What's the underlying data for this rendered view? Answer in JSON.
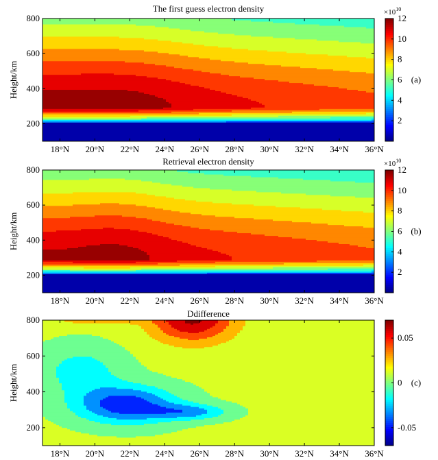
{
  "chart_data": [
    {
      "type": "heatmap",
      "title": "The first guess electron density",
      "panel_label": "(a)",
      "ylabel": "Height/km",
      "xlabel": "",
      "xlim": [
        17,
        36
      ],
      "ylim": [
        100,
        800
      ],
      "x_ticks": [
        "18°N",
        "20°N",
        "22°N",
        "24°N",
        "26°N",
        "28°N",
        "30°N",
        "32°N",
        "34°N",
        "36°N"
      ],
      "y_ticks": [
        "200",
        "400",
        "600",
        "800"
      ],
      "colorbar": {
        "ticks": [
          "2",
          "4",
          "6",
          "8",
          "10",
          "12"
        ],
        "multiplier_base": "×10",
        "multiplier_exp": "10",
        "range": [
          0,
          12
        ]
      },
      "fields": {
        "peak_height_km": 290,
        "peak_value": 12.5,
        "core_lat_range": [
          17,
          26.5
        ],
        "core_height_range": [
          270,
          345
        ],
        "bottomside_cutoff_km": 205
      }
    },
    {
      "type": "heatmap",
      "title": "Retrieval electron density",
      "panel_label": "(b)",
      "ylabel": "Height/km",
      "xlabel": "",
      "xlim": [
        17,
        36
      ],
      "ylim": [
        100,
        800
      ],
      "x_ticks": [
        "18°N",
        "20°N",
        "22°N",
        "24°N",
        "26°N",
        "28°N",
        "30°N",
        "32°N",
        "34°N",
        "36°N"
      ],
      "y_ticks": [
        "200",
        "400",
        "600",
        "800"
      ],
      "colorbar": {
        "ticks": [
          "2",
          "4",
          "6",
          "8",
          "10",
          "12"
        ],
        "multiplier_base": "×10",
        "multiplier_exp": "10",
        "range": [
          0,
          12
        ]
      },
      "fields": {
        "peak_height_km": 290,
        "peak_value": 12.2,
        "core_lat_range": [
          18.5,
          24.5
        ],
        "core_height_range": [
          275,
          310
        ],
        "bottomside_cutoff_km": 205
      }
    },
    {
      "type": "heatmap",
      "title": "Ddifference",
      "panel_label": "(c)",
      "ylabel": "Height/km",
      "xlabel": "",
      "xlim": [
        17,
        36
      ],
      "ylim": [
        100,
        800
      ],
      "x_ticks": [
        "18°N",
        "20°N",
        "22°N",
        "24°N",
        "26°N",
        "28°N",
        "30°N",
        "32°N",
        "34°N",
        "36°N"
      ],
      "y_ticks": [
        "200",
        "400",
        "600",
        "800"
      ],
      "colorbar": {
        "ticks": [
          "0.05",
          "0",
          "-0.05"
        ],
        "tick_values": [
          0.05,
          0,
          -0.05
        ],
        "range": [
          -0.07,
          0.07
        ]
      },
      "fields": {
        "positive_max_lat": 25.5,
        "positive_max_height_km": 780,
        "negative_min_lat": 22,
        "negative_min_height_km": 340
      }
    }
  ]
}
